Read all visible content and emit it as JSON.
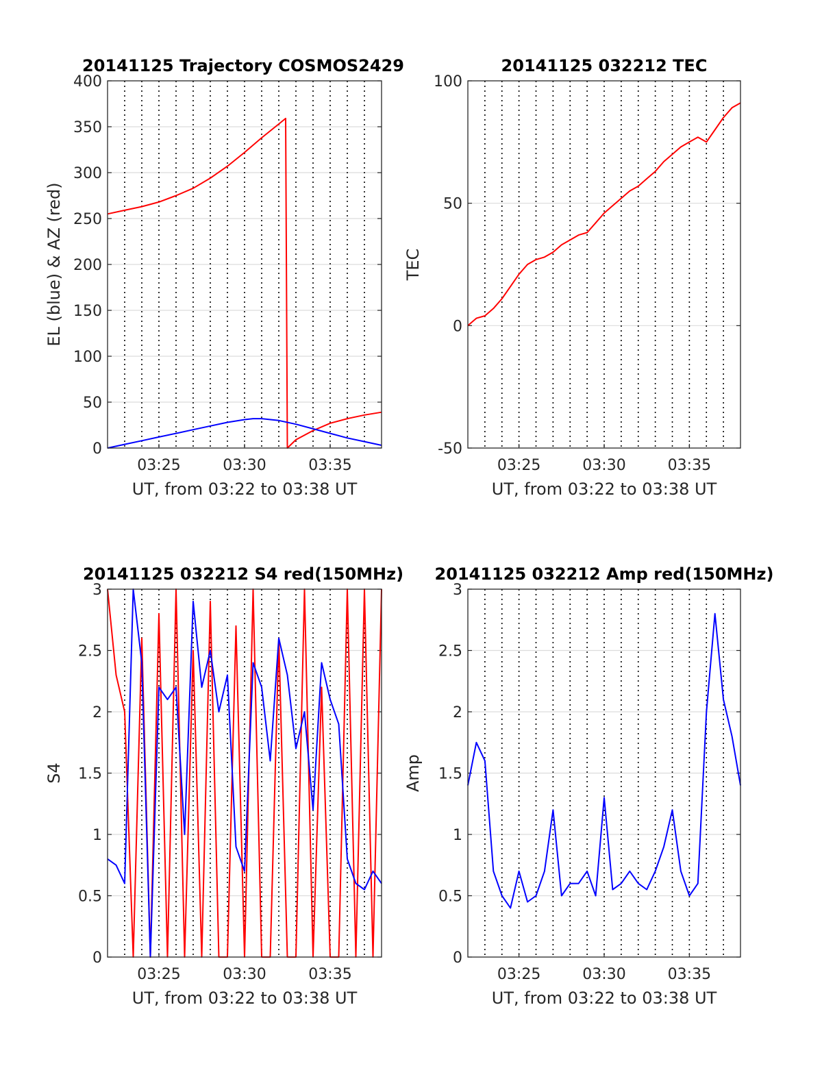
{
  "chart_data": [
    {
      "type": "line",
      "title": "20141125 Trajectory COSMOS2429",
      "xlabel": "UT, from 03:22 to 03:38 UT",
      "ylabel": "EL (blue) & AZ (red)",
      "xlim": [
        "03:22",
        "03:38"
      ],
      "ylim": [
        0,
        400
      ],
      "x_tick_labels": [
        "03:25",
        "03:30",
        "03:35"
      ],
      "y_tick_labels": [
        "0",
        "50",
        "100",
        "150",
        "200",
        "250",
        "300",
        "350",
        "400"
      ],
      "grid": true,
      "series": [
        {
          "color": "#ff0000",
          "x": [
            "03:22",
            "03:23",
            "03:24",
            "03:25",
            "03:26",
            "03:27",
            "03:28",
            "03:29",
            "03:30",
            "03:31",
            "03:32",
            "03:32.4",
            "03:32.5",
            "03:33",
            "03:34",
            "03:35",
            "03:36",
            "03:37",
            "03:38"
          ],
          "values": [
            255,
            259,
            263,
            268,
            275,
            283,
            294,
            307,
            322,
            338,
            353,
            359,
            0,
            9,
            19,
            27,
            32,
            36,
            39
          ]
        },
        {
          "color": "#0000ff",
          "x": [
            "03:22",
            "03:23",
            "03:24",
            "03:25",
            "03:26",
            "03:27",
            "03:28",
            "03:29",
            "03:30",
            "03:30.5",
            "03:31",
            "03:32",
            "03:33",
            "03:34",
            "03:35",
            "03:36",
            "03:37",
            "03:38"
          ],
          "values": [
            0,
            4,
            8,
            12,
            16,
            20,
            24,
            28,
            31,
            32,
            32,
            30,
            26,
            21,
            16,
            11,
            7,
            3
          ]
        }
      ]
    },
    {
      "type": "line",
      "title": "20141125 032212 TEC",
      "xlabel": "UT, from 03:22 to 03:38 UT",
      "ylabel": "TEC",
      "xlim": [
        "03:22",
        "03:38"
      ],
      "ylim": [
        -50,
        100
      ],
      "x_tick_labels": [
        "03:25",
        "03:30",
        "03:35"
      ],
      "y_tick_labels": [
        "-50",
        "0",
        "50",
        "100"
      ],
      "grid": true,
      "series": [
        {
          "color": "#ff0000",
          "x": [
            "03:22",
            "03:22.5",
            "03:23",
            "03:23.5",
            "03:24",
            "03:24.5",
            "03:25",
            "03:25.5",
            "03:26",
            "03:26.5",
            "03:27",
            "03:27.5",
            "03:28",
            "03:28.5",
            "03:29",
            "03:29.5",
            "03:30",
            "03:30.5",
            "03:31",
            "03:31.5",
            "03:32",
            "03:32.5",
            "03:33",
            "03:33.5",
            "03:34",
            "03:34.5",
            "03:35",
            "03:35.5",
            "03:36",
            "03:36.5",
            "03:37",
            "03:37.5",
            "03:38"
          ],
          "values": [
            0,
            3,
            4,
            7,
            11,
            16,
            21,
            25,
            27,
            28,
            30,
            33,
            35,
            37,
            38,
            42,
            46,
            49,
            52,
            55,
            57,
            60,
            63,
            67,
            70,
            73,
            75,
            77,
            75,
            80,
            85,
            89,
            91
          ]
        }
      ]
    },
    {
      "type": "line",
      "title": "20141125 032212 S4 red(150MHz)",
      "xlabel": "UT, from 03:22 to 03:38 UT",
      "ylabel": "S4",
      "xlim": [
        "03:22",
        "03:38"
      ],
      "ylim": [
        0,
        3
      ],
      "x_tick_labels": [
        "03:25",
        "03:30",
        "03:35"
      ],
      "y_tick_labels": [
        "0",
        "0.5",
        "1",
        "1.5",
        "2",
        "2.5",
        "3"
      ],
      "grid": true,
      "series": [
        {
          "color": "#ff0000",
          "x": [
            "03:22",
            "03:22.5",
            "03:23",
            "03:23.5",
            "03:24",
            "03:24.5",
            "03:25",
            "03:25.5",
            "03:26",
            "03:26.5",
            "03:27",
            "03:27.5",
            "03:28",
            "03:28.5",
            "03:29",
            "03:29.5",
            "03:30",
            "03:30.5",
            "03:31",
            "03:31.5",
            "03:32",
            "03:32.5",
            "03:33",
            "03:33.5",
            "03:34",
            "03:34.5",
            "03:35",
            "03:35.5",
            "03:36",
            "03:36.5",
            "03:37",
            "03:37.5",
            "03:38"
          ],
          "values": [
            3,
            2.3,
            2.0,
            0,
            2.6,
            0,
            2.8,
            0,
            3,
            0,
            2.5,
            0,
            2.9,
            0,
            0,
            2.7,
            0,
            3,
            0,
            0,
            2.6,
            0,
            0,
            3,
            0,
            2.2,
            0,
            0,
            3,
            0,
            3,
            0,
            3
          ]
        },
        {
          "color": "#0000ff",
          "x": [
            "03:22",
            "03:22.5",
            "03:23",
            "03:23.5",
            "03:24",
            "03:24.5",
            "03:25",
            "03:25.5",
            "03:26",
            "03:26.5",
            "03:27",
            "03:27.5",
            "03:28",
            "03:28.5",
            "03:29",
            "03:29.5",
            "03:30",
            "03:30.5",
            "03:31",
            "03:31.5",
            "03:32",
            "03:32.5",
            "03:33",
            "03:33.5",
            "03:34",
            "03:34.5",
            "03:35",
            "03:35.5",
            "03:36",
            "03:36.5",
            "03:37",
            "03:37.5",
            "03:38"
          ],
          "values": [
            0.8,
            0.75,
            0.6,
            3,
            2.4,
            0,
            2.2,
            2.1,
            2.2,
            1.0,
            2.9,
            2.2,
            2.5,
            2.0,
            2.3,
            0.9,
            0.7,
            2.4,
            2.2,
            1.6,
            2.6,
            2.3,
            1.7,
            2.0,
            1.2,
            2.4,
            2.1,
            1.9,
            0.8,
            0.6,
            0.55,
            0.7,
            0.6
          ]
        }
      ]
    },
    {
      "type": "line",
      "title": "20141125 032212 Amp red(150MHz)",
      "xlabel": "UT, from 03:22 to 03:38 UT",
      "ylabel": "Amp",
      "xlim": [
        "03:22",
        "03:38"
      ],
      "ylim": [
        0,
        3
      ],
      "x_tick_labels": [
        "03:25",
        "03:30",
        "03:35"
      ],
      "y_tick_labels": [
        "0",
        "0.5",
        "1",
        "1.5",
        "2",
        "2.5",
        "3"
      ],
      "grid": true,
      "series": [
        {
          "color": "#0000ff",
          "x": [
            "03:22",
            "03:22.5",
            "03:23",
            "03:23.5",
            "03:24",
            "03:24.5",
            "03:25",
            "03:25.5",
            "03:26",
            "03:26.5",
            "03:27",
            "03:27.5",
            "03:28",
            "03:28.5",
            "03:29",
            "03:29.5",
            "03:30",
            "03:30.5",
            "03:31",
            "03:31.5",
            "03:32",
            "03:32.5",
            "03:33",
            "03:33.5",
            "03:34",
            "03:34.5",
            "03:35",
            "03:35.5",
            "03:36",
            "03:36.5",
            "03:37",
            "03:37.5",
            "03:38"
          ],
          "values": [
            1.4,
            1.75,
            1.6,
            0.7,
            0.5,
            0.4,
            0.7,
            0.45,
            0.5,
            0.7,
            1.2,
            0.5,
            0.6,
            0.6,
            0.7,
            0.5,
            1.3,
            0.55,
            0.6,
            0.7,
            0.6,
            0.55,
            0.7,
            0.9,
            1.2,
            0.7,
            0.5,
            0.6,
            2.0,
            2.8,
            2.1,
            1.8,
            1.4
          ]
        }
      ]
    }
  ]
}
